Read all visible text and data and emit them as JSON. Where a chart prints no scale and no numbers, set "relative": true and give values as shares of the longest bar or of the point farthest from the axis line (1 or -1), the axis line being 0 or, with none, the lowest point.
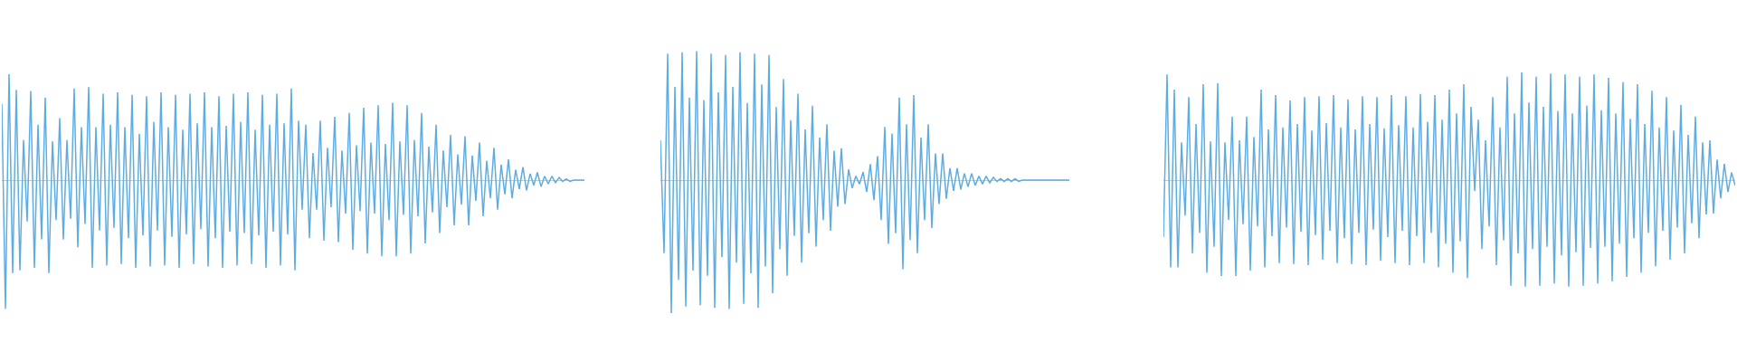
{
  "chart_data": [
    {
      "type": "line",
      "relative": true,
      "color": "#5dade2",
      "categories": [
        null,
        null,
        null,
        null,
        null,
        null,
        null,
        null,
        null,
        null,
        null,
        null,
        null,
        null,
        null,
        null,
        null,
        null,
        null,
        null,
        null,
        null,
        null,
        null,
        null,
        null,
        null,
        null,
        null,
        null,
        null,
        null,
        null,
        null,
        null,
        null,
        null,
        null,
        null,
        null,
        null,
        null,
        null,
        null,
        null,
        null,
        null,
        null,
        null,
        null,
        null,
        null,
        null,
        null,
        null,
        null,
        null,
        null,
        null,
        null,
        null,
        null,
        null,
        null,
        null,
        null,
        null,
        null,
        null,
        null,
        null,
        null,
        null,
        null,
        null,
        null,
        null,
        null,
        null,
        null,
        null,
        null,
        null,
        null,
        null,
        null,
        null,
        null,
        null,
        null,
        null,
        null,
        null,
        null,
        null,
        null,
        null,
        null,
        null,
        null,
        null,
        null,
        null,
        null,
        null,
        null,
        null,
        null,
        null,
        null,
        null,
        null,
        null,
        null,
        null,
        null,
        null,
        null,
        null,
        null,
        null,
        null,
        null,
        null,
        null,
        null,
        null,
        null,
        null,
        null,
        null,
        null,
        null,
        null,
        null,
        null,
        null,
        null,
        null,
        null,
        null,
        null,
        null,
        null,
        null,
        null,
        null,
        null,
        null,
        null,
        null,
        null,
        null,
        null,
        null,
        null,
        null,
        null,
        null,
        null,
        null,
        null
      ],
      "values": [
        0.59,
        -1.0,
        0.82,
        -0.72,
        0.7,
        -0.7,
        0.31,
        -0.32,
        0.69,
        -0.68,
        0.43,
        -0.46,
        0.64,
        -0.72,
        0.3,
        -0.31,
        0.48,
        -0.46,
        0.31,
        -0.3,
        0.71,
        -0.52,
        0.41,
        -0.34,
        0.72,
        -0.68,
        0.41,
        -0.39,
        0.67,
        -0.66,
        0.43,
        -0.37,
        0.68,
        -0.65,
        0.41,
        -0.45,
        0.66,
        -0.68,
        0.36,
        -0.43,
        0.65,
        -0.67,
        0.45,
        -0.39,
        0.68,
        -0.66,
        0.41,
        -0.44,
        0.66,
        -0.68,
        0.39,
        -0.42,
        0.67,
        -0.65,
        0.44,
        -0.38,
        0.68,
        -0.67,
        0.41,
        -0.45,
        0.65,
        -0.68,
        0.42,
        -0.4,
        0.67,
        -0.66,
        0.45,
        -0.41,
        0.68,
        -0.65,
        0.39,
        -0.43,
        0.66,
        -0.68,
        0.43,
        -0.4,
        0.67,
        -0.66,
        0.44,
        -0.42,
        0.71,
        -0.7,
        0.46,
        -0.23,
        0.43,
        -0.45,
        0.21,
        -0.23,
        0.46,
        -0.47,
        0.25,
        -0.21,
        0.49,
        -0.48,
        0.23,
        -0.26,
        0.52,
        -0.54,
        0.27,
        -0.24,
        0.56,
        -0.57,
        0.29,
        -0.26,
        0.58,
        -0.59,
        0.28,
        -0.31,
        0.6,
        -0.59,
        0.3,
        -0.27,
        0.58,
        -0.57,
        0.31,
        -0.28,
        0.52,
        -0.49,
        0.26,
        -0.25,
        0.43,
        -0.41,
        0.23,
        -0.21,
        0.35,
        -0.35,
        0.2,
        -0.19,
        0.34,
        -0.35,
        0.19,
        -0.16,
        0.29,
        -0.28,
        0.15,
        -0.14,
        0.25,
        -0.23,
        0.12,
        -0.11,
        0.16,
        -0.14,
        0.08,
        -0.07,
        0.1,
        -0.08,
        0.05,
        -0.04,
        0.06,
        -0.05,
        0.03,
        -0.03,
        0.03,
        -0.02,
        0.02,
        -0.01,
        0.01,
        -0.01,
        0,
        0,
        0,
        0
      ]
    },
    {
      "type": "line",
      "relative": true,
      "color": "#5dade2",
      "categories": [
        null,
        null,
        null,
        null,
        null,
        null,
        null,
        null,
        null,
        null,
        null,
        null,
        null,
        null,
        null,
        null,
        null,
        null,
        null,
        null,
        null,
        null,
        null,
        null,
        null,
        null,
        null,
        null,
        null,
        null,
        null,
        null,
        null,
        null,
        null,
        null,
        null,
        null,
        null,
        null,
        null,
        null,
        null,
        null,
        null,
        null,
        null,
        null,
        null,
        null,
        null,
        null,
        null,
        null,
        null,
        null,
        null,
        null,
        null,
        null,
        null,
        null,
        null,
        null,
        null,
        null,
        null,
        null,
        null,
        null,
        null,
        null,
        null,
        null,
        null,
        null,
        null,
        null,
        null,
        null,
        null,
        null,
        null,
        null,
        null,
        null,
        null,
        null,
        null,
        null,
        null,
        null,
        null,
        null,
        null,
        null,
        null,
        null,
        null,
        null,
        null,
        null,
        null,
        null,
        null,
        null,
        null,
        null,
        null,
        null,
        null,
        null,
        null,
        null
      ],
      "values": [
        0.3,
        -0.55,
        0.95,
        -1.0,
        0.7,
        -0.75,
        0.96,
        -0.95,
        0.62,
        -0.68,
        0.97,
        -0.94,
        0.6,
        -0.72,
        0.95,
        -0.96,
        0.66,
        -0.58,
        0.94,
        -0.97,
        0.7,
        -0.62,
        0.96,
        -0.93,
        0.58,
        -0.7,
        0.95,
        -0.96,
        0.72,
        -0.65,
        0.94,
        -0.85,
        0.55,
        -0.52,
        0.76,
        -0.72,
        0.45,
        -0.42,
        0.65,
        -0.62,
        0.38,
        -0.4,
        0.56,
        -0.5,
        0.32,
        -0.3,
        0.42,
        -0.38,
        0.22,
        -0.2,
        0.24,
        -0.18,
        0.08,
        -0.06,
        0.03,
        -0.03,
        0.06,
        -0.09,
        0.12,
        -0.15,
        0.18,
        -0.3,
        0.4,
        -0.48,
        0.35,
        -0.4,
        0.62,
        -0.67,
        0.42,
        -0.45,
        0.64,
        -0.55,
        0.32,
        -0.3,
        0.42,
        -0.36,
        0.2,
        -0.18,
        0.2,
        -0.14,
        0.09,
        -0.08,
        0.09,
        -0.07,
        0.05,
        -0.05,
        0.05,
        -0.04,
        0.03,
        -0.03,
        0.03,
        -0.02,
        0.02,
        -0.01,
        0.01,
        -0.01,
        0.01,
        -0.01,
        0.01,
        -0.01,
        0,
        0,
        0,
        0,
        0,
        0,
        0,
        0,
        0,
        0,
        0,
        0,
        0,
        0
      ]
    },
    {
      "type": "line",
      "relative": true,
      "color": "#5dade2",
      "categories": [
        null,
        null,
        null,
        null,
        null,
        null,
        null,
        null,
        null,
        null,
        null,
        null,
        null,
        null,
        null,
        null,
        null,
        null,
        null,
        null,
        null,
        null,
        null,
        null,
        null,
        null,
        null,
        null,
        null,
        null,
        null,
        null,
        null,
        null,
        null,
        null,
        null,
        null,
        null,
        null,
        null,
        null,
        null,
        null,
        null,
        null,
        null,
        null,
        null,
        null,
        null,
        null,
        null,
        null,
        null,
        null,
        null,
        null,
        null,
        null,
        null,
        null,
        null,
        null,
        null,
        null,
        null,
        null,
        null,
        null,
        null,
        null,
        null,
        null,
        null,
        null,
        null,
        null,
        null,
        null,
        null,
        null,
        null,
        null,
        null,
        null,
        null,
        null,
        null,
        null,
        null,
        null,
        null,
        null,
        null,
        null,
        null,
        null,
        null,
        null,
        null,
        null,
        null,
        null,
        null,
        null,
        null,
        null,
        null,
        null,
        null,
        null,
        null,
        null,
        null,
        null,
        null,
        null,
        null,
        null,
        null,
        null,
        null,
        null,
        null,
        null,
        null,
        null,
        null,
        null,
        null,
        null,
        null,
        null,
        null,
        null,
        null,
        null,
        null,
        null,
        null,
        null,
        null,
        null,
        null,
        null,
        null,
        null,
        null,
        null,
        null,
        null,
        null,
        null,
        null,
        null,
        null,
        null,
        null
      ],
      "values": [
        -0.53,
        0.98,
        -0.81,
        0.84,
        -0.81,
        0.35,
        -0.33,
        0.77,
        -0.68,
        0.52,
        -0.49,
        0.89,
        -0.86,
        0.36,
        -0.62,
        0.9,
        -0.89,
        0.35,
        -0.37,
        0.59,
        -0.89,
        0.37,
        -0.41,
        0.59,
        -0.84,
        0.4,
        -0.43,
        0.84,
        -0.81,
        0.47,
        -0.52,
        0.79,
        -0.77,
        0.49,
        -0.44,
        0.74,
        -0.78,
        0.52,
        -0.48,
        0.77,
        -0.79,
        0.46,
        -0.51,
        0.78,
        -0.74,
        0.53,
        -0.47,
        0.79,
        -0.77,
        0.49,
        -0.54,
        0.75,
        -0.78,
        0.47,
        -0.49,
        0.78,
        -0.79,
        0.52,
        -0.46,
        0.77,
        -0.75,
        0.48,
        -0.53,
        0.79,
        -0.77,
        0.51,
        -0.47,
        0.78,
        -0.79,
        0.49,
        -0.52,
        0.8,
        -0.77,
        0.54,
        -0.49,
        0.79,
        -0.81,
        0.56,
        -0.59,
        0.84,
        -0.86,
        0.62,
        -0.57,
        0.89,
        -0.91,
        0.68,
        -0.1,
        0.56,
        -0.64,
        0.37,
        -0.43,
        0.77,
        -0.79,
        0.49,
        -0.56,
        0.96,
        -0.98,
        0.62,
        -0.68,
        1.0,
        -0.99,
        0.72,
        -0.64,
        0.96,
        -0.98,
        0.68,
        -0.62,
        0.99,
        -0.96,
        0.64,
        -0.7,
        0.98,
        -0.99,
        0.62,
        -0.67,
        0.96,
        -0.98,
        0.69,
        -0.63,
        0.98,
        -0.96,
        0.65,
        -0.62,
        0.95,
        -0.94,
        0.62,
        -0.59,
        0.91,
        -0.9,
        0.57,
        -0.54,
        0.89,
        -0.86,
        0.52,
        -0.49,
        0.83,
        -0.8,
        0.49,
        -0.47,
        0.77,
        -0.74,
        0.46,
        -0.44,
        0.7,
        -0.68,
        0.42,
        -0.4,
        0.59,
        -0.54,
        0.35,
        -0.32,
        0.37,
        -0.31,
        0.19,
        -0.17,
        0.15,
        -0.11,
        0.07,
        -0.05
      ]
    }
  ]
}
